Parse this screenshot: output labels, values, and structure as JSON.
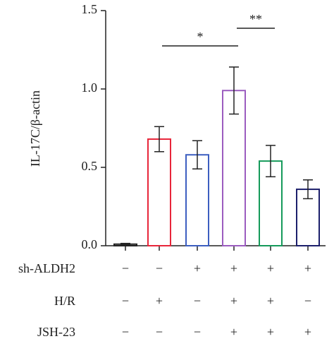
{
  "chart_data": {
    "type": "bar",
    "y_label": "IL-17C/β-actin",
    "categories": [
      null,
      null,
      null,
      null,
      null,
      null
    ],
    "values": [
      0.01,
      0.68,
      0.58,
      0.99,
      0.54,
      0.36
    ],
    "errors": [
      0.005,
      0.08,
      0.09,
      0.15,
      0.1,
      0.06
    ],
    "colors": [
      "#222222",
      "#e8253a",
      "#3c5ec0",
      "#9b5cbf",
      "#159a5a",
      "#1c1f6b"
    ],
    "ylim": [
      0,
      1.5
    ],
    "yticks": [
      {
        "value": 0,
        "label": "0.0"
      },
      {
        "value": 0.5,
        "label": "0.5"
      },
      {
        "value": 1,
        "label": "1.0"
      },
      {
        "value": 1.5,
        "label": "1.5"
      }
    ],
    "annotations": [
      {
        "text": "*",
        "start": 1,
        "end": 3
      },
      {
        "text": "**",
        "start": 3,
        "end": 4
      }
    ],
    "conditions": [
      {
        "name": "sh-ALDH2",
        "values": [
          "−",
          "−",
          "+",
          "+",
          "+",
          "+"
        ]
      },
      {
        "name": "H/R",
        "values": [
          "−",
          "+",
          "−",
          "+",
          "+",
          "−"
        ]
      },
      {
        "name": "JSH-23",
        "values": [
          "−",
          "−",
          "−",
          "+",
          "+",
          "+"
        ]
      }
    ]
  }
}
